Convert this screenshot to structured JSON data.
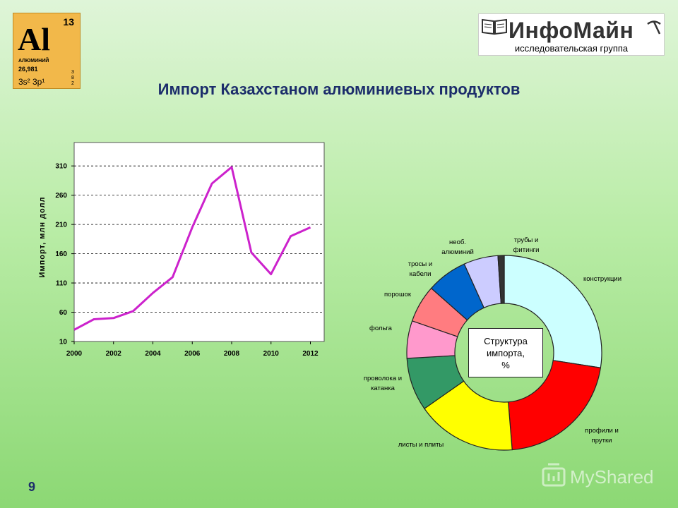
{
  "element_tile": {
    "number": "13",
    "symbol": "Al",
    "name": "АЛЮМИНИЙ",
    "mass": "26,981",
    "config": "3s² 3p¹",
    "shells": [
      "3",
      "8",
      "2"
    ],
    "color": "#f2b84a"
  },
  "logo": {
    "brand": "ИнфоМайн",
    "subtitle": "исследовательская группа",
    "icons": [
      "book-icon",
      "pickaxe-icon"
    ]
  },
  "title": "Импорт Казахстаном алюминиевых продуктов",
  "page_number": "9",
  "watermark": "MyShared",
  "chart_data": [
    {
      "type": "line",
      "title": "",
      "xlabel": "",
      "ylabel": "Импорт, млн долл",
      "x": [
        2000,
        2001,
        2002,
        2003,
        2004,
        2005,
        2006,
        2007,
        2008,
        2009,
        2010,
        2011,
        2012
      ],
      "series": [
        {
          "name": "",
          "values": [
            30,
            48,
            50,
            62,
            93,
            120,
            205,
            280,
            308,
            162,
            125,
            190,
            205
          ],
          "color": "#cc22cc"
        }
      ],
      "xticks": [
        "2000",
        "2002",
        "2004",
        "2006",
        "2008",
        "2010",
        "2012"
      ],
      "yticks": [
        "10",
        "60",
        "110",
        "160",
        "210",
        "260",
        "310"
      ],
      "ylim": [
        10,
        350
      ],
      "xlim": [
        2000,
        2012.7
      ],
      "grid": "horizontal-dashed",
      "legend": "none"
    },
    {
      "type": "pie",
      "style": "donut",
      "center_label": [
        "Структура",
        "импорта,",
        "%"
      ],
      "slices": [
        {
          "label": "конструкции",
          "value": 26.5,
          "color": "#ccffff"
        },
        {
          "label": "профили и прутки",
          "value": 20.5,
          "color": "#ff0000"
        },
        {
          "label": "листы и плиты",
          "value": 16,
          "color": "#ffff00"
        },
        {
          "label": "проволока и катанка",
          "value": 8.5,
          "color": "#339966"
        },
        {
          "label": "фольга",
          "value": 6,
          "color": "#ff99cc"
        },
        {
          "label": "порошок",
          "value": 6,
          "color": "#ff7c80"
        },
        {
          "label": "тросы и кабели",
          "value": 6.5,
          "color": "#0066cc"
        },
        {
          "label": "необ. алюминий",
          "value": 5.5,
          "color": "#ccccff"
        },
        {
          "label": "трубы и фитинги",
          "value": 1,
          "color": "#333333"
        }
      ]
    }
  ]
}
